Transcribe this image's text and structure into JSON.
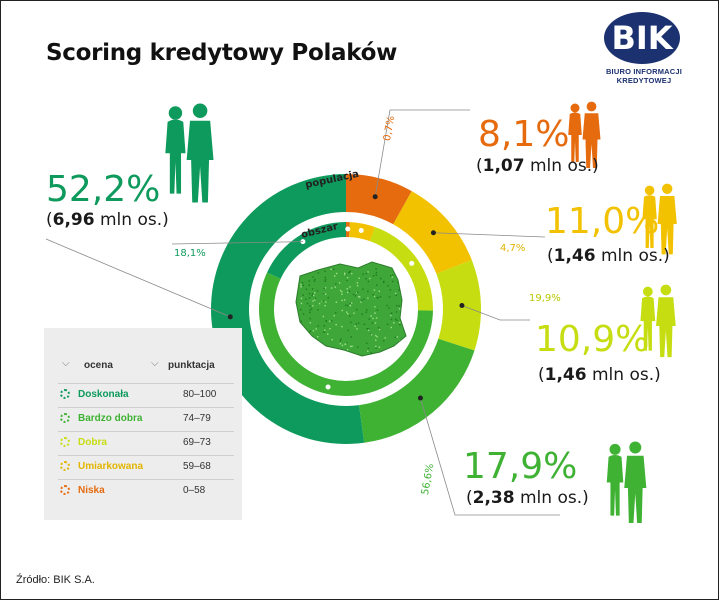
{
  "title": "Scoring kredytowy Polaków",
  "logo": {
    "text": "BIK",
    "subtitle": "BIURO INFORMACJI KREDYTOWEJ"
  },
  "ring_labels": {
    "outer": "populacja",
    "inner": "obszar"
  },
  "groups": [
    {
      "rating": "Doskonała",
      "pct": "52,2%",
      "count_bold": "6,96",
      "count_rest": " mln os.",
      "area_pct": "18,1%",
      "color": "#0e9a5c"
    },
    {
      "rating": "Bardzo dobra",
      "pct": "17,9%",
      "count_bold": "2,38",
      "count_rest": " mln os.",
      "area_pct": "56,6%",
      "color": "#3fb234"
    },
    {
      "rating": "Dobra",
      "pct": "10,9%",
      "count_bold": "1,46",
      "count_rest": " mln os.",
      "area_pct": "19,9%",
      "color": "#c6dd11"
    },
    {
      "rating": "Umiarkowana",
      "pct": "11,0%",
      "count_bold": "1,46",
      "count_rest": " mln os.",
      "area_pct": "4,7%",
      "color": "#f2c200"
    },
    {
      "rating": "Niska",
      "pct": "8,1%",
      "count_bold": "1,07",
      "count_rest": " mln os.",
      "area_pct": "0,7%",
      "color": "#e56b0e"
    }
  ],
  "legend": {
    "col1": "ocena",
    "col2": "punktacja",
    "rows": [
      {
        "name": "Doskonała",
        "score": "80–100",
        "color": "#0e9a5c"
      },
      {
        "name": "Bardzo dobra",
        "score": "74–79",
        "color": "#3fb234"
      },
      {
        "name": "Dobra",
        "score": "69–73",
        "color": "#c6dd11"
      },
      {
        "name": "Umiarkowana",
        "score": "59–68",
        "color": "#e2b500"
      },
      {
        "name": "Niska",
        "score": "0–58",
        "color": "#e56b0e"
      }
    ]
  },
  "source": "Źródło: BIK S.A.",
  "chart_data": {
    "type": "pie",
    "title": "Scoring kredytowy Polaków",
    "categories": [
      "Niska",
      "Umiarkowana",
      "Dobra",
      "Bardzo dobra",
      "Doskonała"
    ],
    "series": [
      {
        "name": "populacja",
        "values": [
          8.1,
          11.0,
          10.9,
          17.9,
          52.2
        ]
      },
      {
        "name": "obszar",
        "values": [
          0.7,
          4.7,
          19.9,
          56.6,
          18.1
        ]
      }
    ],
    "counts_mln": [
      1.07,
      1.46,
      1.46,
      2.38,
      6.96
    ],
    "colors": [
      "#e56b0e",
      "#f2c200",
      "#c6dd11",
      "#3fb234",
      "#0e9a5c"
    ]
  }
}
